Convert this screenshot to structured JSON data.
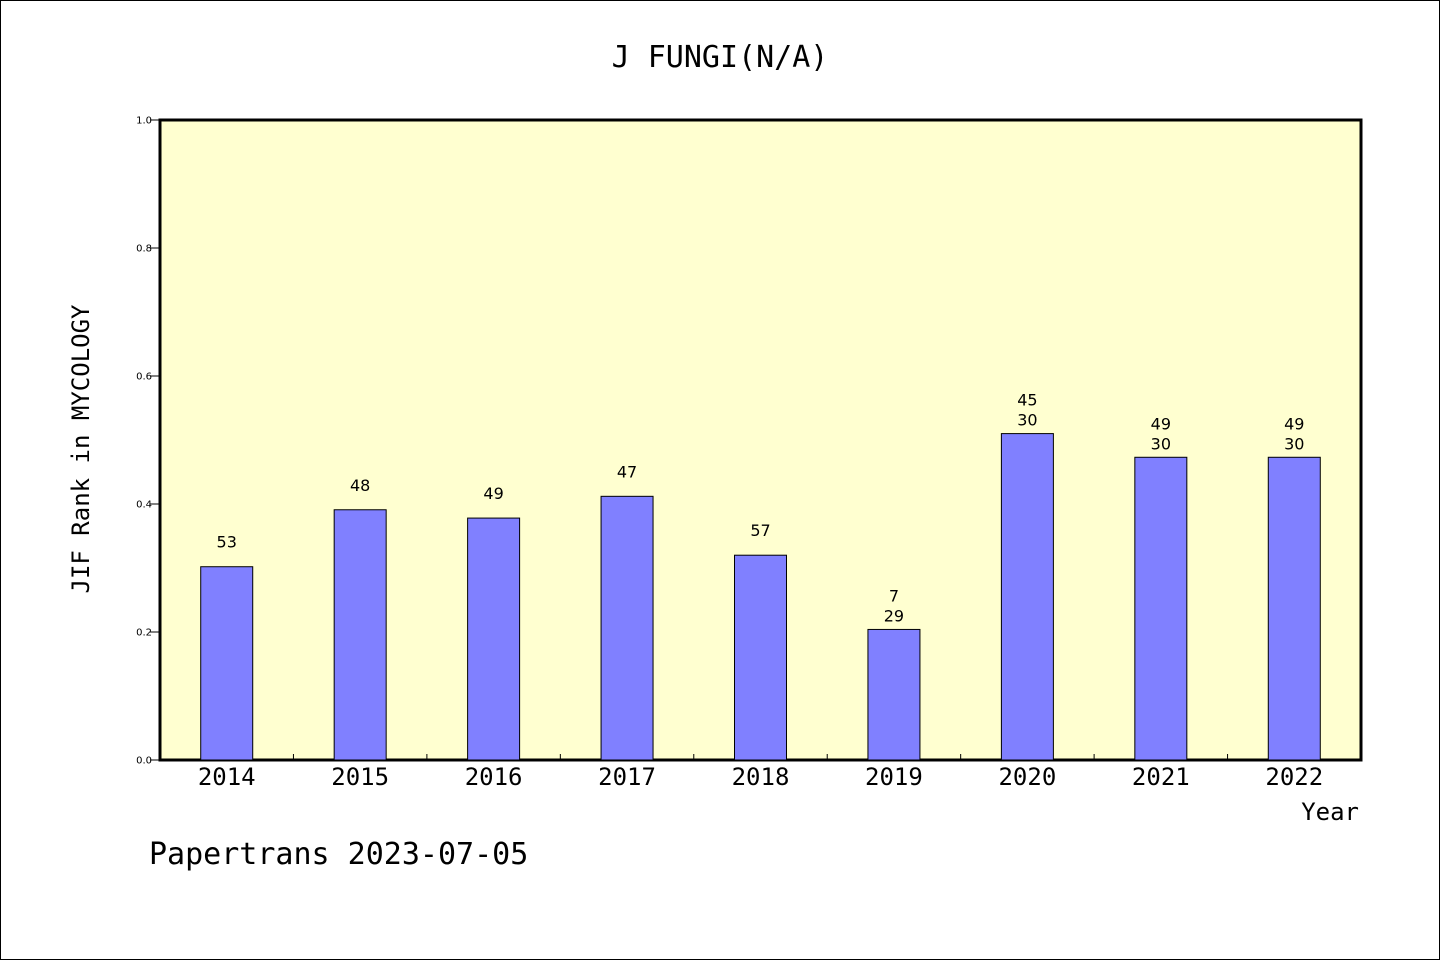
{
  "chart_data": {
    "type": "bar",
    "title": "J FUNGI(N/A)",
    "ylabel": "JIF Rank in MYCOLOGY",
    "xlabel": "Year",
    "ylim": [
      0,
      1
    ],
    "yticks": [
      "0.0",
      "0.2",
      "0.4",
      "0.6",
      "0.8",
      "1.0"
    ],
    "categories": [
      "2014",
      "2015",
      "2016",
      "2017",
      "2018",
      "2019",
      "2020",
      "2021",
      "2022"
    ],
    "values": [
      0.302,
      0.391,
      0.378,
      0.412,
      0.32,
      0.204,
      0.51,
      0.473,
      0.473
    ],
    "labels": [
      [
        "53"
      ],
      [
        "48"
      ],
      [
        "49"
      ],
      [
        "47"
      ],
      [
        "57"
      ],
      [
        "7",
        "29"
      ],
      [
        "45",
        "30"
      ],
      [
        "49",
        "30"
      ],
      [
        "49",
        "30"
      ]
    ],
    "grid": false,
    "colors": {
      "bar": "#8080ff",
      "plot_bg": "#ffffd0",
      "bar_edge": "#000000"
    }
  },
  "footer": "Papertrans 2023-07-05"
}
